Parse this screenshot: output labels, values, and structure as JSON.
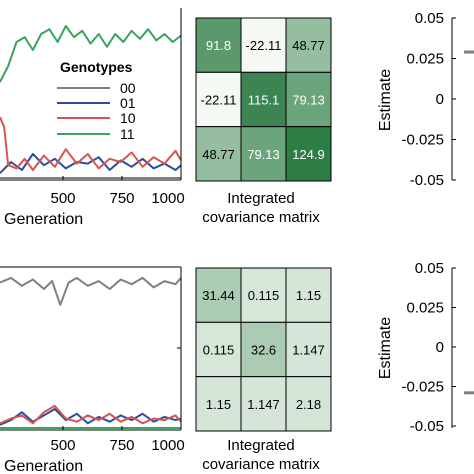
{
  "colors": {
    "00": "#7f7f7f",
    "01": "#2b4f9e",
    "10": "#d9534f",
    "11": "#3aa35c",
    "axis": "#000000",
    "heat_low": "#f4faf3",
    "heat_high": "#2f7d46"
  },
  "legend": {
    "title": "Genotypes",
    "items": [
      "00",
      "01",
      "10",
      "11"
    ]
  },
  "chart_data": [
    {
      "id": "top-timeseries",
      "type": "line",
      "xlabel": "Generation",
      "xticks": [
        "500",
        "750",
        "1000"
      ],
      "xlim": [
        340,
        1000
      ],
      "ylim": [
        0,
        1
      ],
      "series": [
        {
          "name": "00",
          "x": [
            340,
            1000
          ],
          "y": [
            0.0,
            0.0
          ]
        },
        {
          "name": "01",
          "x": [
            340,
            380,
            420,
            460,
            500,
            540,
            580,
            620,
            660,
            700,
            740,
            780,
            820,
            860,
            900,
            940,
            980,
            1000
          ],
          "y": [
            0.03,
            0.1,
            0.05,
            0.15,
            0.08,
            0.12,
            0.06,
            0.1,
            0.09,
            0.13,
            0.05,
            0.11,
            0.07,
            0.12,
            0.06,
            0.09,
            0.05,
            0.08
          ]
        },
        {
          "name": "10",
          "x": [
            340,
            355,
            370,
            400,
            430,
            460,
            500,
            540,
            580,
            620,
            660,
            700,
            740,
            780,
            820,
            860,
            900,
            940,
            980,
            1000
          ],
          "y": [
            0.38,
            0.32,
            0.08,
            0.06,
            0.12,
            0.05,
            0.14,
            0.07,
            0.18,
            0.09,
            0.15,
            0.06,
            0.12,
            0.1,
            0.16,
            0.07,
            0.13,
            0.09,
            0.17,
            0.11
          ]
        },
        {
          "name": "11",
          "x": [
            340,
            370,
            400,
            430,
            460,
            490,
            520,
            550,
            580,
            610,
            640,
            670,
            700,
            730,
            760,
            790,
            820,
            850,
            880,
            910,
            940,
            970,
            1000
          ],
          "y": [
            0.6,
            0.7,
            0.85,
            0.88,
            0.8,
            0.9,
            0.93,
            0.85,
            0.95,
            0.88,
            0.92,
            0.84,
            0.9,
            0.82,
            0.9,
            0.85,
            0.92,
            0.87,
            0.93,
            0.86,
            0.9,
            0.85,
            0.89
          ]
        }
      ]
    },
    {
      "id": "top-covariance",
      "type": "heatmap",
      "xlabel": "Integrated\ncovariance matrix",
      "values": [
        [
          91.8,
          -22.11,
          48.77
        ],
        [
          -22.11,
          115.1,
          79.13
        ],
        [
          48.77,
          79.13,
          124.9
        ]
      ],
      "labels": [
        [
          "91.8",
          "-22.11",
          "48.77"
        ],
        [
          "-22.11",
          "115.1",
          "79.13"
        ],
        [
          "48.77",
          "79.13",
          "124.9"
        ]
      ],
      "range": [
        -22.11,
        124.9
      ]
    },
    {
      "id": "top-estimate",
      "type": "scatter",
      "ylabel": "Estimate",
      "yticks": [
        "0.05",
        "0.025",
        "0",
        "-0.025",
        "-0.05"
      ],
      "ylim": [
        -0.05,
        0.05
      ],
      "points": [
        {
          "y": 0.029
        }
      ]
    },
    {
      "id": "bottom-timeseries",
      "type": "line",
      "xlabel": "Generation",
      "xticks": [
        "500",
        "750",
        "1000"
      ],
      "xlim": [
        340,
        1000
      ],
      "ylim": [
        0,
        1
      ],
      "series": [
        {
          "name": "00",
          "x": [
            340,
            380,
            420,
            460,
            500,
            530,
            560,
            590,
            620,
            660,
            700,
            740,
            780,
            820,
            860,
            900,
            940,
            980,
            1000
          ],
          "y": [
            0.92,
            0.95,
            0.9,
            0.94,
            0.88,
            0.93,
            0.78,
            0.92,
            0.95,
            0.9,
            0.93,
            0.88,
            0.94,
            0.91,
            0.95,
            0.89,
            0.93,
            0.91,
            0.95
          ]
        },
        {
          "name": "01",
          "x": [
            340,
            380,
            420,
            460,
            500,
            540,
            580,
            620,
            660,
            700,
            740,
            780,
            820,
            860,
            900,
            940,
            980,
            1000
          ],
          "y": [
            0.02,
            0.05,
            0.1,
            0.04,
            0.08,
            0.12,
            0.05,
            0.09,
            0.03,
            0.07,
            0.04,
            0.08,
            0.05,
            0.09,
            0.04,
            0.07,
            0.05,
            0.06
          ]
        },
        {
          "name": "10",
          "x": [
            340,
            380,
            420,
            460,
            500,
            540,
            580,
            620,
            660,
            700,
            740,
            780,
            820,
            860,
            900,
            940,
            980,
            1000
          ],
          "y": [
            0.03,
            0.06,
            0.08,
            0.03,
            0.1,
            0.14,
            0.06,
            0.04,
            0.08,
            0.05,
            0.09,
            0.04,
            0.07,
            0.03,
            0.06,
            0.05,
            0.08,
            0.04
          ]
        },
        {
          "name": "11",
          "x": [
            340,
            1000
          ],
          "y": [
            0.0,
            0.0
          ]
        }
      ]
    },
    {
      "id": "bottom-covariance",
      "type": "heatmap",
      "xlabel": "Integrated\ncovariance matrix",
      "values": [
        [
          31.44,
          0.115,
          1.15
        ],
        [
          0.115,
          32.6,
          1.147
        ],
        [
          1.15,
          1.147,
          2.18
        ]
      ],
      "labels": [
        [
          "31.44",
          "0.115",
          "1.15"
        ],
        [
          "0.115",
          "32.6",
          "1.147"
        ],
        [
          "1.15",
          "1.147",
          "2.18"
        ]
      ],
      "range": [
        -22.11,
        124.9
      ]
    },
    {
      "id": "bottom-estimate",
      "type": "scatter",
      "ylabel": "Estimate",
      "yticks": [
        "0.05",
        "0.025",
        "0",
        "-0.025",
        "-0.05"
      ],
      "ylim": [
        -0.05,
        0.05
      ],
      "points": [
        {
          "y": -0.029
        }
      ]
    }
  ]
}
